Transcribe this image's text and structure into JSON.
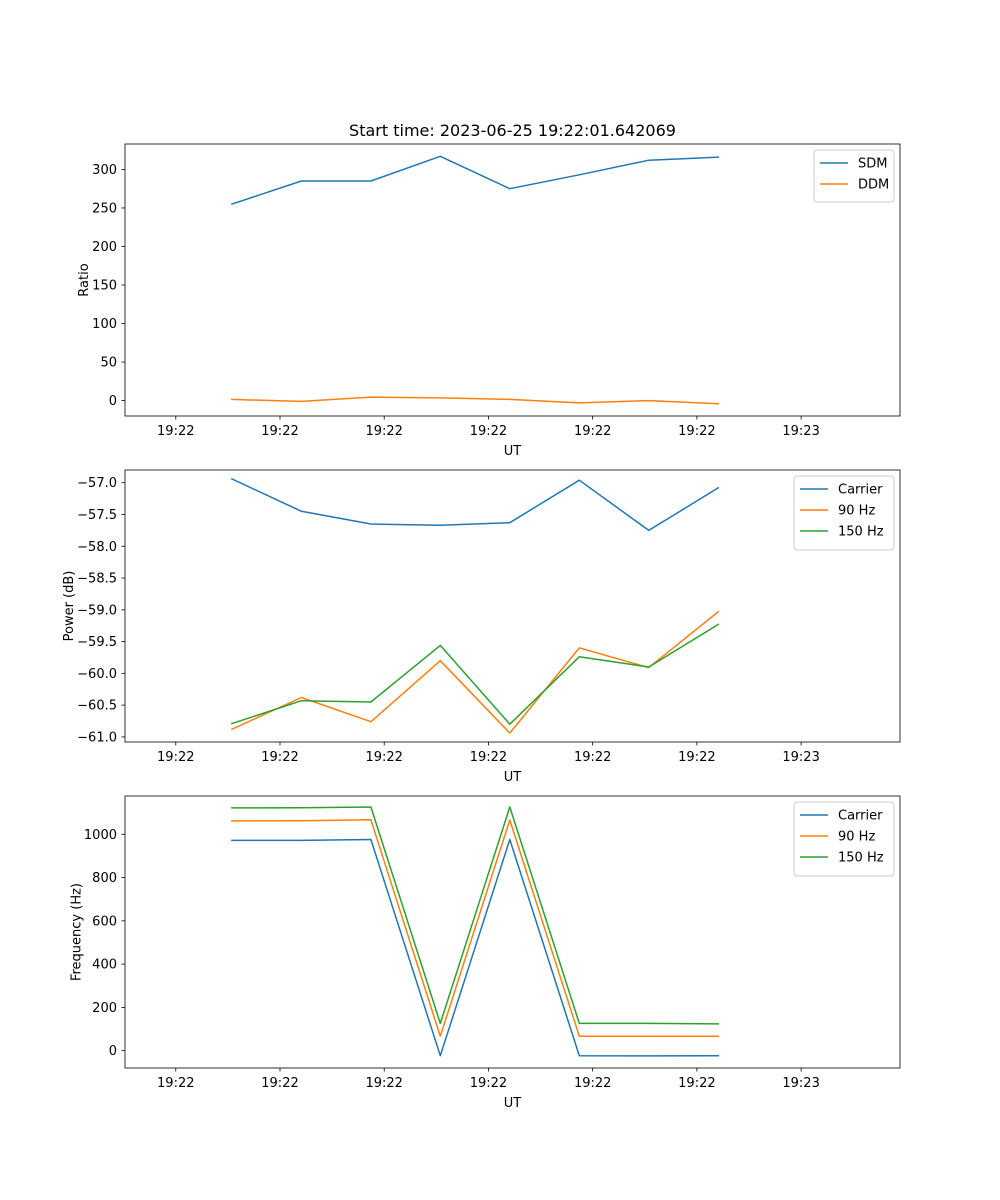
{
  "figure": {
    "title": "Start time: 2023-06-25 19:22:01.642069"
  },
  "chart_data": [
    {
      "type": "line",
      "title": "Start time: 2023-06-25 19:22:01.642069",
      "xlabel": "UT",
      "ylabel": "Ratio",
      "x_tick_labels": [
        "19:22",
        "19:22",
        "19:22",
        "19:22",
        "19:22",
        "19:22",
        "19:23"
      ],
      "y_ticks": [
        0,
        50,
        100,
        150,
        200,
        250,
        300
      ],
      "y_tick_labels": [
        "0",
        "50",
        "100",
        "150",
        "200",
        "250",
        "300"
      ],
      "xlim": [
        -1.0,
        13.5
      ],
      "ylim": [
        -20,
        333
      ],
      "x": [
        1,
        2.3,
        3.6,
        4.9,
        6.2,
        7.5,
        8.8,
        10.1
      ],
      "series": [
        {
          "name": "SDM",
          "color": "#1f77b4",
          "values": [
            255,
            285,
            285,
            317,
            275,
            293,
            312,
            316
          ]
        },
        {
          "name": "DDM",
          "color": "#ff7f0e",
          "values": [
            1.5,
            -1,
            4.5,
            3.5,
            1.5,
            -3,
            0,
            -4
          ]
        }
      ],
      "grid": false,
      "legend_position": "upper right"
    },
    {
      "type": "line",
      "xlabel": "UT",
      "ylabel": "Power (dB)",
      "x_tick_labels": [
        "19:22",
        "19:22",
        "19:22",
        "19:22",
        "19:22",
        "19:22",
        "19:23"
      ],
      "y_ticks": [
        -61.0,
        -60.5,
        -60.0,
        -59.5,
        -59.0,
        -58.5,
        -58.0,
        -57.5,
        -57.0
      ],
      "y_tick_labels": [
        "−61.0",
        "−60.5",
        "−60.0",
        "−59.5",
        "−59.0",
        "−58.5",
        "−58.0",
        "−57.5",
        "−57.0"
      ],
      "xlim": [
        -1.0,
        13.5
      ],
      "ylim": [
        -61.08,
        -56.8
      ],
      "x": [
        1,
        2.3,
        3.6,
        4.9,
        6.2,
        7.5,
        8.8,
        10.1
      ],
      "series": [
        {
          "name": "Carrier",
          "color": "#1f77b4",
          "values": [
            -56.94,
            -57.45,
            -57.65,
            -57.67,
            -57.63,
            -56.96,
            -57.75,
            -57.08
          ]
        },
        {
          "name": "90 Hz",
          "color": "#ff7f0e",
          "values": [
            -60.88,
            -60.38,
            -60.76,
            -59.8,
            -60.94,
            -59.6,
            -59.91,
            -59.03
          ]
        },
        {
          "name": "150 Hz",
          "color": "#2ca02c",
          "values": [
            -60.79,
            -60.43,
            -60.45,
            -59.56,
            -60.8,
            -59.74,
            -59.9,
            -59.23
          ]
        }
      ],
      "grid": false,
      "legend_position": "upper right"
    },
    {
      "type": "line",
      "xlabel": "UT",
      "ylabel": "Frequency (Hz)",
      "x_tick_labels": [
        "19:22",
        "19:22",
        "19:22",
        "19:22",
        "19:22",
        "19:22",
        "19:23"
      ],
      "y_ticks": [
        0,
        200,
        400,
        600,
        800,
        1000
      ],
      "y_tick_labels": [
        "0",
        "200",
        "400",
        "600",
        "800",
        "1000"
      ],
      "xlim": [
        -1.0,
        13.5
      ],
      "ylim": [
        -80,
        1177
      ],
      "x": [
        1,
        2.3,
        3.6,
        4.9,
        6.2,
        7.5,
        8.8,
        10.1
      ],
      "series": [
        {
          "name": "Carrier",
          "color": "#1f77b4",
          "values": [
            972,
            972,
            976,
            -23,
            976,
            -23,
            -24,
            -23
          ]
        },
        {
          "name": "90 Hz",
          "color": "#ff7f0e",
          "values": [
            1062,
            1063,
            1067,
            67,
            1066,
            67,
            67,
            67
          ]
        },
        {
          "name": "150 Hz",
          "color": "#2ca02c",
          "values": [
            1122,
            1123,
            1126,
            126,
            1126,
            126,
            126,
            124
          ]
        }
      ],
      "grid": false,
      "legend_position": "upper right"
    }
  ]
}
